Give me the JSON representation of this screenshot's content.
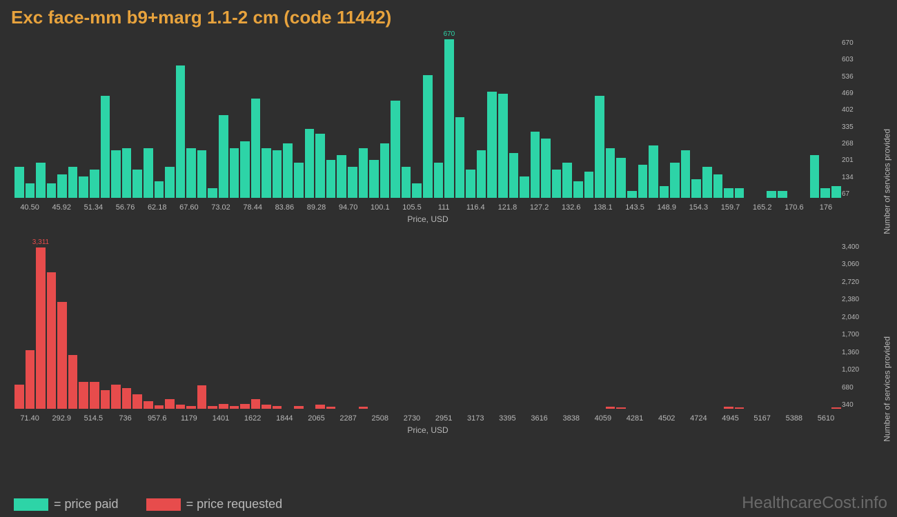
{
  "title": "Exc face-mm b9+marg 1.1-2 cm (code 11442)",
  "background_color": "#2f2f2f",
  "title_color": "#e8a33d",
  "axis_text_color": "#b8b8b8",
  "watermark": "HealthcareCost.info",
  "watermark_color": "#6a6a6a",
  "chart1": {
    "type": "bar",
    "color": "#2dd4a7",
    "xlabel": "Price, USD",
    "ylabel": "Number of services provided",
    "ymax": 670,
    "peak_label": "670",
    "peak_index": 40,
    "yticks": [
      "670",
      "603",
      "536",
      "469",
      "402",
      "335",
      "268",
      "201",
      "134",
      "67"
    ],
    "xticks": [
      "40.50",
      "45.92",
      "51.34",
      "56.76",
      "62.18",
      "67.60",
      "73.02",
      "78.44",
      "83.86",
      "89.28",
      "94.70",
      "100.1",
      "105.5",
      "111",
      "116.4",
      "121.8",
      "127.2",
      "132.6",
      "138.1",
      "143.5",
      "148.9",
      "154.3",
      "159.7",
      "165.2",
      "170.6",
      "176"
    ],
    "values": [
      130,
      60,
      150,
      60,
      100,
      130,
      90,
      120,
      430,
      200,
      210,
      120,
      210,
      70,
      130,
      560,
      210,
      200,
      40,
      350,
      210,
      240,
      420,
      210,
      200,
      230,
      150,
      290,
      270,
      160,
      180,
      130,
      210,
      160,
      230,
      410,
      130,
      60,
      520,
      150,
      670,
      340,
      120,
      200,
      450,
      440,
      190,
      90,
      280,
      250,
      120,
      150,
      70,
      110,
      430,
      210,
      170,
      30,
      140,
      220,
      50,
      150,
      200,
      80,
      130,
      100,
      40,
      40,
      0,
      0,
      30,
      30,
      0,
      0,
      180,
      40,
      50
    ]
  },
  "chart2": {
    "type": "bar",
    "color": "#e74c4c",
    "xlabel": "Price, USD",
    "ylabel": "Number of services provided",
    "ymax": 3400,
    "peak_label": "3,311",
    "peak_index": 2,
    "yticks": [
      "3,400",
      "3,060",
      "2,720",
      "2,380",
      "2,040",
      "1,700",
      "1,360",
      "1,020",
      "680",
      "340"
    ],
    "xticks": [
      "71.40",
      "292.9",
      "514.5",
      "736",
      "957.6",
      "1179",
      "1401",
      "1622",
      "1844",
      "2065",
      "2287",
      "2508",
      "2730",
      "2951",
      "3173",
      "3395",
      "3616",
      "3838",
      "4059",
      "4281",
      "4502",
      "4724",
      "4945",
      "5167",
      "5388",
      "5610"
    ],
    "values": [
      500,
      1200,
      3311,
      2800,
      2200,
      1100,
      550,
      550,
      380,
      500,
      420,
      300,
      150,
      70,
      200,
      80,
      60,
      480,
      60,
      100,
      60,
      100,
      200,
      80,
      60,
      0,
      60,
      0,
      80,
      40,
      0,
      0,
      40,
      0,
      0,
      0,
      0,
      0,
      0,
      0,
      0,
      0,
      0,
      0,
      0,
      0,
      0,
      0,
      0,
      0,
      0,
      0,
      0,
      0,
      0,
      40,
      30,
      0,
      0,
      0,
      0,
      0,
      0,
      0,
      0,
      0,
      40,
      30,
      0,
      0,
      0,
      0,
      0,
      0,
      0,
      0,
      30
    ]
  },
  "legend": {
    "items": [
      {
        "color": "#2dd4a7",
        "label": "= price paid"
      },
      {
        "color": "#e74c4c",
        "label": "= price requested"
      }
    ]
  }
}
